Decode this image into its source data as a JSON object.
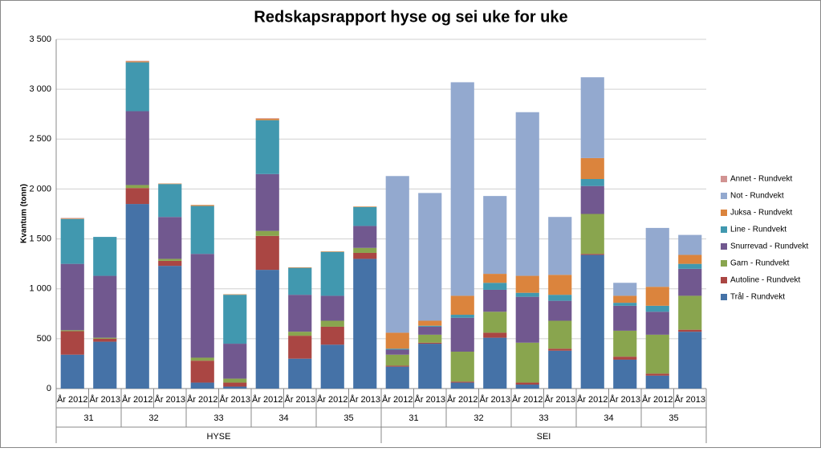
{
  "chart_data": {
    "type": "stacked-bar",
    "title": "Redskapsrapport hyse og sei uke for uke",
    "y_label": "Kvantum (tonn)",
    "categories": [
      "År 2012",
      "År 2013",
      "År 2012",
      "År 2013",
      "År 2012",
      "År 2013",
      "År 2012",
      "År 2013",
      "År 2012",
      "År 2013",
      "År 2012",
      "År 2013",
      "År 2012",
      "År 2013",
      "År 2012",
      "År 2013",
      "År 2012",
      "År 2013",
      "År 2012",
      "År 2013"
    ],
    "weeks": [
      "31",
      "32",
      "33",
      "34",
      "35",
      "31",
      "32",
      "33",
      "34",
      "35"
    ],
    "groups": [
      "HYSE",
      "SEI"
    ],
    "ylim": [
      0,
      3500
    ],
    "yticks": [
      0,
      500,
      {
        "value": 1000,
        "label": "1 000"
      },
      {
        "value": 1500,
        "label": "1 500"
      },
      {
        "value": 2000,
        "label": "2 000"
      },
      {
        "value": 2500,
        "label": "2 500"
      },
      {
        "value": 3000,
        "label": "3 000"
      },
      {
        "value": 3500,
        "label": "3 500"
      }
    ],
    "grid": true,
    "legend": "right",
    "series": [
      {
        "name": "Trål - Rundvekt",
        "color": "#4572a7",
        "values": [
          340,
          470,
          1850,
          1230,
          60,
          20,
          1190,
          300,
          440,
          1300,
          220,
          450,
          60,
          510,
          40,
          380,
          1340,
          290,
          130,
          570
        ]
      },
      {
        "name": "Autoline - Rundvekt",
        "color": "#aa4643",
        "values": [
          235,
          30,
          160,
          50,
          220,
          40,
          340,
          230,
          180,
          60,
          10,
          10,
          10,
          50,
          20,
          20,
          10,
          30,
          20,
          20
        ]
      },
      {
        "name": "Garn - Rundvekt",
        "color": "#89a54e",
        "values": [
          10,
          10,
          30,
          20,
          30,
          40,
          50,
          40,
          60,
          50,
          110,
          80,
          300,
          210,
          400,
          280,
          400,
          260,
          390,
          340
        ]
      },
      {
        "name": "Snurrevad - Rundvekt",
        "color": "#71588f",
        "values": [
          665,
          620,
          740,
          420,
          1040,
          350,
          570,
          370,
          250,
          220,
          50,
          80,
          340,
          220,
          460,
          200,
          280,
          250,
          230,
          270
        ]
      },
      {
        "name": "Line - Rundvekt",
        "color": "#4198af",
        "values": [
          450,
          390,
          490,
          330,
          480,
          490,
          540,
          270,
          440,
          190,
          10,
          10,
          30,
          70,
          40,
          60,
          70,
          30,
          60,
          50
        ]
      },
      {
        "name": "Juksa - Rundvekt",
        "color": "#db843d",
        "values": [
          5,
          0,
          10,
          5,
          10,
          5,
          15,
          5,
          5,
          5,
          160,
          50,
          190,
          90,
          170,
          200,
          210,
          70,
          190,
          90
        ]
      },
      {
        "name": "Not - Rundvekt",
        "color": "#93a9cf",
        "values": [
          0,
          0,
          0,
          0,
          0,
          0,
          0,
          0,
          0,
          0,
          1570,
          1280,
          2140,
          780,
          1640,
          580,
          810,
          130,
          590,
          200
        ]
      },
      {
        "name": "Annet - Rundvekt",
        "color": "#d19392",
        "values": [
          5,
          0,
          5,
          0,
          0,
          0,
          5,
          0,
          0,
          0,
          0,
          0,
          0,
          0,
          0,
          0,
          0,
          0,
          0,
          0
        ]
      }
    ]
  }
}
